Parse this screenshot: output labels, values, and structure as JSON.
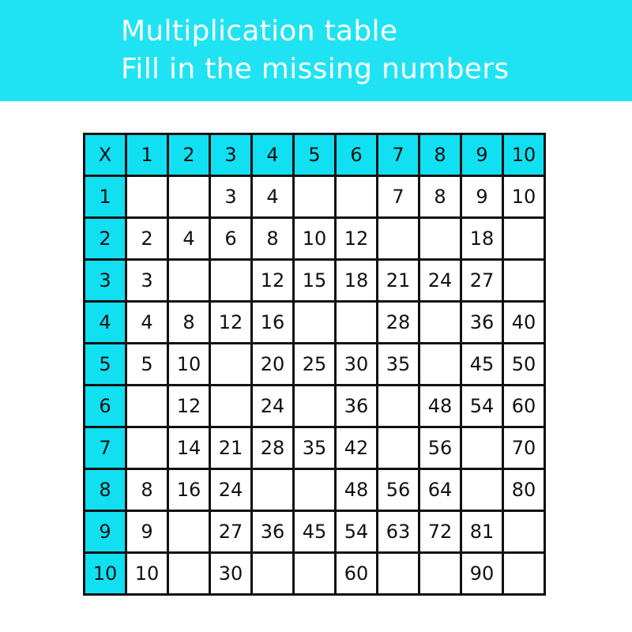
{
  "header": {
    "title": "Multiplication table",
    "subtitle": "Fill in the missing numbers"
  },
  "colors": {
    "banner": "#1fe3f3",
    "header_cells": "#11e0f2"
  },
  "table": {
    "corner": "X",
    "column_headers": [
      "1",
      "2",
      "3",
      "4",
      "5",
      "6",
      "7",
      "8",
      "9",
      "10"
    ],
    "rows": [
      {
        "header": "1",
        "cells": [
          "",
          "",
          "3",
          "4",
          "",
          "",
          "7",
          "8",
          "9",
          "10"
        ]
      },
      {
        "header": "2",
        "cells": [
          "2",
          "4",
          "6",
          "8",
          "10",
          "12",
          "",
          "",
          "18",
          ""
        ]
      },
      {
        "header": "3",
        "cells": [
          "3",
          "",
          "",
          "12",
          "15",
          "18",
          "21",
          "24",
          "27",
          ""
        ]
      },
      {
        "header": "4",
        "cells": [
          "4",
          "8",
          "12",
          "16",
          "",
          "",
          "28",
          "",
          "36",
          "40"
        ]
      },
      {
        "header": "5",
        "cells": [
          "5",
          "10",
          "",
          "20",
          "25",
          "30",
          "35",
          "",
          "45",
          "50"
        ]
      },
      {
        "header": "6",
        "cells": [
          "",
          "12",
          "",
          "24",
          "",
          "36",
          "",
          "48",
          "54",
          "60"
        ]
      },
      {
        "header": "7",
        "cells": [
          "",
          "14",
          "21",
          "28",
          "35",
          "42",
          "",
          "56",
          "",
          "70"
        ]
      },
      {
        "header": "8",
        "cells": [
          "8",
          "16",
          "24",
          "",
          "",
          "48",
          "56",
          "64",
          "",
          "80"
        ]
      },
      {
        "header": "9",
        "cells": [
          "9",
          "",
          "27",
          "36",
          "45",
          "54",
          "63",
          "72",
          "81",
          ""
        ]
      },
      {
        "header": "10",
        "cells": [
          "10",
          "",
          "30",
          "",
          "",
          "60",
          "",
          "",
          "90",
          ""
        ]
      }
    ]
  }
}
